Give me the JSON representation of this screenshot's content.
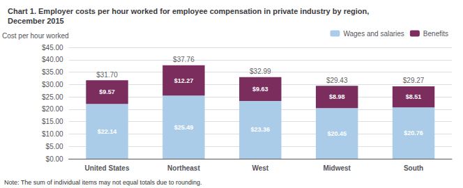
{
  "chart_data": {
    "type": "bar",
    "title": "Chart 1. Employer costs per hour worked for employee compensation in private industry by region,\nDecember 2015",
    "ylabel": "Cost per hour worked",
    "note": "Note: The sum of individual items may not equal totals due to rounding.",
    "categories": [
      "United States",
      "Northeast",
      "West",
      "Midwest",
      "South"
    ],
    "stacked": true,
    "data_labels": true,
    "series": [
      {
        "name": "Wages and salaries",
        "color": "#aacce8",
        "values": [
          22.14,
          25.49,
          23.36,
          20.45,
          20.76
        ],
        "value_labels": [
          "$22.14",
          "$25.49",
          "$23.36",
          "$20.45",
          "$20.76"
        ]
      },
      {
        "name": "Benefits",
        "color": "#7B2D5E",
        "values": [
          9.57,
          12.27,
          9.63,
          8.98,
          8.51
        ],
        "value_labels": [
          "$9.57",
          "$12.27",
          "$9.63",
          "$8.98",
          "$8.51"
        ]
      }
    ],
    "totals": [
      31.7,
      37.76,
      32.99,
      29.43,
      29.27
    ],
    "total_labels": [
      "$31.70",
      "$37.76",
      "$32.99",
      "$29.43",
      "$29.27"
    ],
    "ylim": [
      0,
      45
    ],
    "yticks": [
      {
        "value": 0,
        "label": "$0.00"
      },
      {
        "value": 5,
        "label": "$5.00"
      },
      {
        "value": 10,
        "label": "$10.00"
      },
      {
        "value": 15,
        "label": "$15.00"
      },
      {
        "value": 20,
        "label": "$20.00"
      },
      {
        "value": 25,
        "label": "$25.00"
      },
      {
        "value": 30,
        "label": "$30.00"
      },
      {
        "value": 35,
        "label": "$35.00"
      },
      {
        "value": 40,
        "label": "$40.00"
      },
      {
        "value": 45,
        "label": "$45.00"
      }
    ],
    "grid": true,
    "legend": "upper right"
  }
}
